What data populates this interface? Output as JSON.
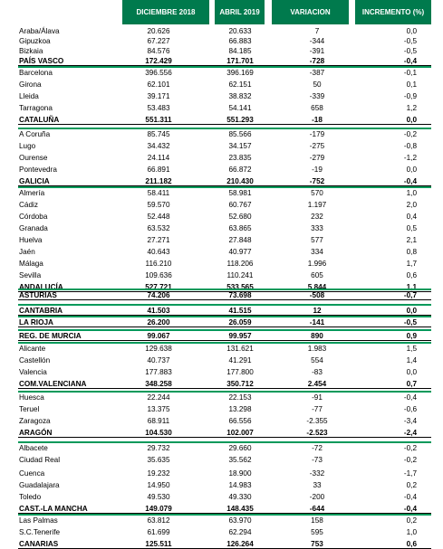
{
  "headers": {
    "col1": "DICIEMBRE 2018",
    "col2": "ABRIL 2019",
    "col3": "VARIACION",
    "col4": "INCREMENTO (%)"
  },
  "rows": [
    {
      "name": "Araba/Álava",
      "dic2018": "20.626",
      "abr2019": "20.633",
      "variacion": "7",
      "incremento": "0,0",
      "total": false
    },
    {
      "name": "Gipuzkoa",
      "dic2018": "67.227",
      "abr2019": "66.883",
      "variacion": "-344",
      "incremento": "-0,5",
      "total": false
    },
    {
      "name": "Bizkaia",
      "dic2018": "84.576",
      "abr2019": "84.185",
      "variacion": "-391",
      "incremento": "-0,5",
      "total": false
    },
    {
      "name": "PAÍS VASCO",
      "dic2018": "172.429",
      "abr2019": "171.701",
      "variacion": "-728",
      "incremento": "-0,4",
      "total": true
    },
    {
      "name": "Barcelona",
      "dic2018": "396.556",
      "abr2019": "396.169",
      "variacion": "-387",
      "incremento": "-0,1",
      "total": false
    },
    {
      "name": "Girona",
      "dic2018": "62.101",
      "abr2019": "62.151",
      "variacion": "50",
      "incremento": "0,1",
      "total": false
    },
    {
      "name": "Lleida",
      "dic2018": "39.171",
      "abr2019": "38.832",
      "variacion": "-339",
      "incremento": "-0,9",
      "total": false
    },
    {
      "name": "Tarragona",
      "dic2018": "53.483",
      "abr2019": "54.141",
      "variacion": "658",
      "incremento": "1,2",
      "total": false
    },
    {
      "name": "CATALUÑA",
      "dic2018": "551.311",
      "abr2019": "551.293",
      "variacion": "-18",
      "incremento": "0,0",
      "total": true
    },
    {
      "name": "A Coruña",
      "dic2018": "85.745",
      "abr2019": "85.566",
      "variacion": "-179",
      "incremento": "-0,2",
      "total": false
    },
    {
      "name": "Lugo",
      "dic2018": "34.432",
      "abr2019": "34.157",
      "variacion": "-275",
      "incremento": "-0,8",
      "total": false
    },
    {
      "name": "Ourense",
      "dic2018": "24.114",
      "abr2019": "23.835",
      "variacion": "-279",
      "incremento": "-1,2",
      "total": false
    },
    {
      "name": "Pontevedra",
      "dic2018": "66.891",
      "abr2019": "66.872",
      "variacion": "-19",
      "incremento": "0,0",
      "total": false
    },
    {
      "name": "GALICIA",
      "dic2018": "211.182",
      "abr2019": "210.430",
      "variacion": "-752",
      "incremento": "-0,4",
      "total": true
    },
    {
      "name": "Almería",
      "dic2018": "58.411",
      "abr2019": "58.981",
      "variacion": "570",
      "incremento": "1,0",
      "total": false
    },
    {
      "name": "Cádiz",
      "dic2018": "59.570",
      "abr2019": "60.767",
      "variacion": "1.197",
      "incremento": "2,0",
      "total": false
    },
    {
      "name": "Córdoba",
      "dic2018": "52.448",
      "abr2019": "52.680",
      "variacion": "232",
      "incremento": "0,4",
      "total": false
    },
    {
      "name": "Granada",
      "dic2018": "63.532",
      "abr2019": "63.865",
      "variacion": "333",
      "incremento": "0,5",
      "total": false
    },
    {
      "name": "Huelva",
      "dic2018": "27.271",
      "abr2019": "27.848",
      "variacion": "577",
      "incremento": "2,1",
      "total": false
    },
    {
      "name": "Jaén",
      "dic2018": "40.643",
      "abr2019": "40.977",
      "variacion": "334",
      "incremento": "0,8",
      "total": false
    },
    {
      "name": "Málaga",
      "dic2018": "116.210",
      "abr2019": "118.206",
      "variacion": "1.996",
      "incremento": "1,7",
      "total": false
    },
    {
      "name": "Sevilla",
      "dic2018": "109.636",
      "abr2019": "110.241",
      "variacion": "605",
      "incremento": "0,6",
      "total": false
    },
    {
      "name": "ANDALUCÍA",
      "dic2018": "527.721",
      "abr2019": "533.565",
      "variacion": "5.844",
      "incremento": "1,1",
      "total": true
    },
    {
      "name": "ASTURIAS",
      "dic2018": "74.206",
      "abr2019": "73.698",
      "variacion": "-508",
      "incremento": "-0,7",
      "total": true
    },
    {
      "name": "CANTABRIA",
      "dic2018": "41.503",
      "abr2019": "41.515",
      "variacion": "12",
      "incremento": "0,0",
      "total": true
    },
    {
      "name": "LA RIOJA",
      "dic2018": "26.200",
      "abr2019": "26.059",
      "variacion": "-141",
      "incremento": "-0,5",
      "total": true
    },
    {
      "name": "REG. DE MURCIA",
      "dic2018": "99.067",
      "abr2019": "99.957",
      "variacion": "890",
      "incremento": "0,9",
      "total": true
    },
    {
      "name": "Alicante",
      "dic2018": "129.638",
      "abr2019": "131.621",
      "variacion": "1.983",
      "incremento": "1,5",
      "total": false
    },
    {
      "name": "Castellón",
      "dic2018": "40.737",
      "abr2019": "41.291",
      "variacion": "554",
      "incremento": "1,4",
      "total": false
    },
    {
      "name": "Valencia",
      "dic2018": "177.883",
      "abr2019": "177.800",
      "variacion": "-83",
      "incremento": "0,0",
      "total": false
    },
    {
      "name": "COM.VALENCIANA",
      "dic2018": "348.258",
      "abr2019": "350.712",
      "variacion": "2.454",
      "incremento": "0,7",
      "total": true
    },
    {
      "name": "Huesca",
      "dic2018": "22.244",
      "abr2019": "22.153",
      "variacion": "-91",
      "incremento": "-0,4",
      "total": false
    },
    {
      "name": "Teruel",
      "dic2018": "13.375",
      "abr2019": "13.298",
      "variacion": "-77",
      "incremento": "-0,6",
      "total": false
    },
    {
      "name": "Zaragoza",
      "dic2018": "68.911",
      "abr2019": "66.556",
      "variacion": "-2.355",
      "incremento": "-3,4",
      "total": false
    },
    {
      "name": "ARAGÓN",
      "dic2018": "104.530",
      "abr2019": "102.007",
      "variacion": "-2.523",
      "incremento": "-2,4",
      "total": true
    },
    {
      "name": "Albacete",
      "dic2018": "29.732",
      "abr2019": "29.660",
      "variacion": "-72",
      "incremento": "-0,2",
      "total": false
    },
    {
      "name": "Ciudad Real",
      "dic2018": "35.635",
      "abr2019": "35.562",
      "variacion": "-73",
      "incremento": "-0,2",
      "total": false
    },
    {
      "name": "Cuenca",
      "dic2018": "19.232",
      "abr2019": "18.900",
      "variacion": "-332",
      "incremento": "-1,7",
      "total": false
    },
    {
      "name": "Guadalajara",
      "dic2018": "14.950",
      "abr2019": "14.983",
      "variacion": "33",
      "incremento": "0,2",
      "total": false
    },
    {
      "name": "Toledo",
      "dic2018": "49.530",
      "abr2019": "49.330",
      "variacion": "-200",
      "incremento": "-0,4",
      "total": false
    },
    {
      "name": "CAST.-LA MANCHA",
      "dic2018": "149.079",
      "abr2019": "148.435",
      "variacion": "-644",
      "incremento": "-0,4",
      "total": true
    },
    {
      "name": "Las Palmas",
      "dic2018": "63.812",
      "abr2019": "63.970",
      "variacion": "158",
      "incremento": "0,2",
      "total": false
    },
    {
      "name": "S.C.Tenerife",
      "dic2018": "61.699",
      "abr2019": "62.294",
      "variacion": "595",
      "incremento": "1,0",
      "total": false
    },
    {
      "name": "CANARIAS",
      "dic2018": "125.511",
      "abr2019": "126.264",
      "variacion": "753",
      "incremento": "0,6",
      "total": true
    }
  ]
}
